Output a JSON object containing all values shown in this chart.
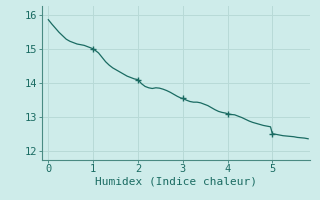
{
  "title": "",
  "xlabel": "Humidex (Indice chaleur)",
  "ylabel": "",
  "background_color": "#ceecea",
  "line_color": "#1a6b62",
  "grid_color": "#b8dad7",
  "tick_label_color": "#1a6b62",
  "spine_color": "#4a8a82",
  "xlim": [
    -0.15,
    5.85
  ],
  "ylim": [
    11.75,
    16.25
  ],
  "xticks": [
    0,
    1,
    2,
    3,
    4,
    5
  ],
  "yticks": [
    12,
    13,
    14,
    15,
    16
  ],
  "x": [
    0.0,
    0.08,
    0.16,
    0.24,
    0.32,
    0.4,
    0.48,
    0.56,
    0.64,
    0.72,
    0.8,
    0.88,
    0.96,
    1.0,
    1.04,
    1.12,
    1.2,
    1.28,
    1.36,
    1.44,
    1.52,
    1.6,
    1.68,
    1.76,
    1.84,
    1.92,
    2.0,
    2.08,
    2.16,
    2.24,
    2.32,
    2.4,
    2.48,
    2.56,
    2.64,
    2.72,
    2.8,
    2.88,
    2.96,
    3.0,
    3.08,
    3.16,
    3.24,
    3.32,
    3.4,
    3.48,
    3.56,
    3.64,
    3.72,
    3.8,
    3.88,
    3.96,
    4.0,
    4.08,
    4.16,
    4.24,
    4.32,
    4.4,
    4.48,
    4.56,
    4.64,
    4.72,
    4.8,
    4.88,
    4.96,
    5.0,
    5.08,
    5.16,
    5.24,
    5.32,
    5.4,
    5.48,
    5.56,
    5.64,
    5.72,
    5.8
  ],
  "y": [
    15.85,
    15.72,
    15.6,
    15.48,
    15.38,
    15.28,
    15.22,
    15.18,
    15.14,
    15.12,
    15.1,
    15.06,
    15.02,
    15.0,
    14.96,
    14.88,
    14.75,
    14.62,
    14.52,
    14.44,
    14.38,
    14.32,
    14.26,
    14.2,
    14.16,
    14.12,
    14.1,
    13.98,
    13.9,
    13.86,
    13.84,
    13.86,
    13.85,
    13.82,
    13.78,
    13.73,
    13.67,
    13.61,
    13.56,
    13.55,
    13.5,
    13.46,
    13.44,
    13.44,
    13.42,
    13.38,
    13.34,
    13.28,
    13.22,
    13.17,
    13.14,
    13.12,
    13.1,
    13.08,
    13.07,
    13.03,
    12.99,
    12.94,
    12.89,
    12.85,
    12.82,
    12.79,
    12.76,
    12.74,
    12.72,
    12.52,
    12.5,
    12.48,
    12.46,
    12.45,
    12.44,
    12.43,
    12.41,
    12.4,
    12.39,
    12.37
  ],
  "marker_x": [
    1.0,
    2.0,
    3.0,
    4.0,
    5.0
  ],
  "marker_y": [
    15.0,
    14.1,
    13.55,
    13.1,
    12.52
  ],
  "marker_size": 5,
  "linewidth": 0.9,
  "font_family": "monospace",
  "xlabel_fontsize": 8,
  "tick_fontsize": 7.5
}
